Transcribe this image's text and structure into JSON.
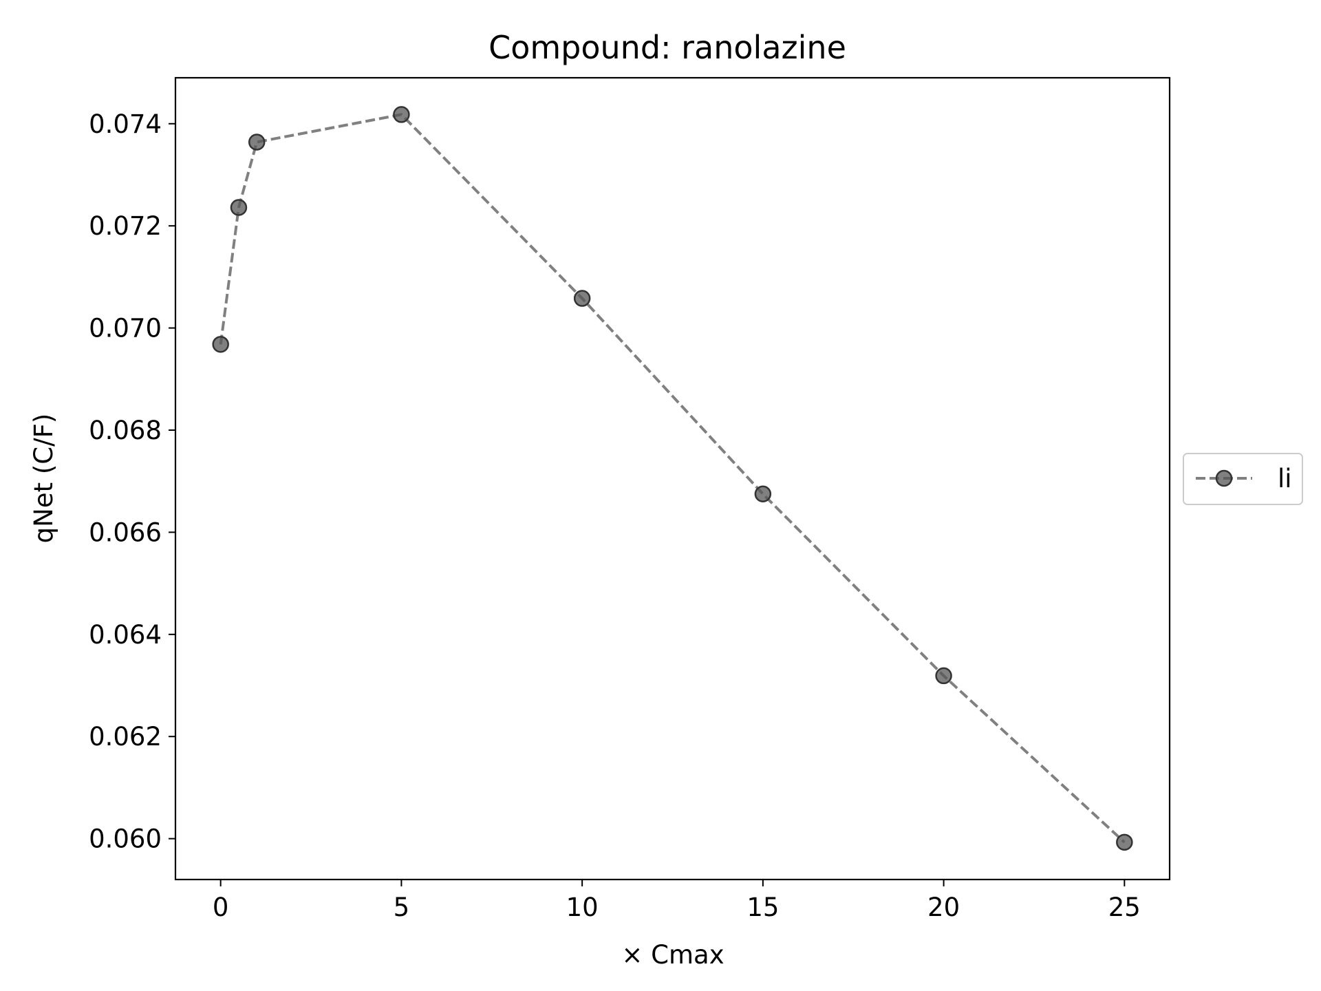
{
  "chart_data": {
    "type": "line",
    "title": "Compound: ranolazine",
    "xlabel": "× Cmax",
    "ylabel": "qNet (C/F)",
    "xlim": [
      -1.25,
      26.25
    ],
    "ylim": [
      0.0592,
      0.0749
    ],
    "xticks": [
      0,
      5,
      10,
      15,
      20,
      25
    ],
    "yticks": [
      0.06,
      0.062,
      0.064,
      0.066,
      0.068,
      0.07,
      0.072,
      0.074
    ],
    "ytick_labels": [
      "0.060",
      "0.062",
      "0.064",
      "0.066",
      "0.068",
      "0.070",
      "0.072",
      "0.074"
    ],
    "xtick_labels": [
      "0",
      "5",
      "10",
      "15",
      "20",
      "25"
    ],
    "grid": false,
    "legend_position": "center-right outside",
    "series": [
      {
        "name": "li",
        "color": "#555555",
        "line_style": "dashed",
        "marker": "circle",
        "x": [
          0,
          0.5,
          1,
          5,
          10,
          15,
          20,
          25
        ],
        "y": [
          0.06968,
          0.07236,
          0.07364,
          0.07418,
          0.07058,
          0.06675,
          0.06319,
          0.05993
        ]
      }
    ]
  }
}
